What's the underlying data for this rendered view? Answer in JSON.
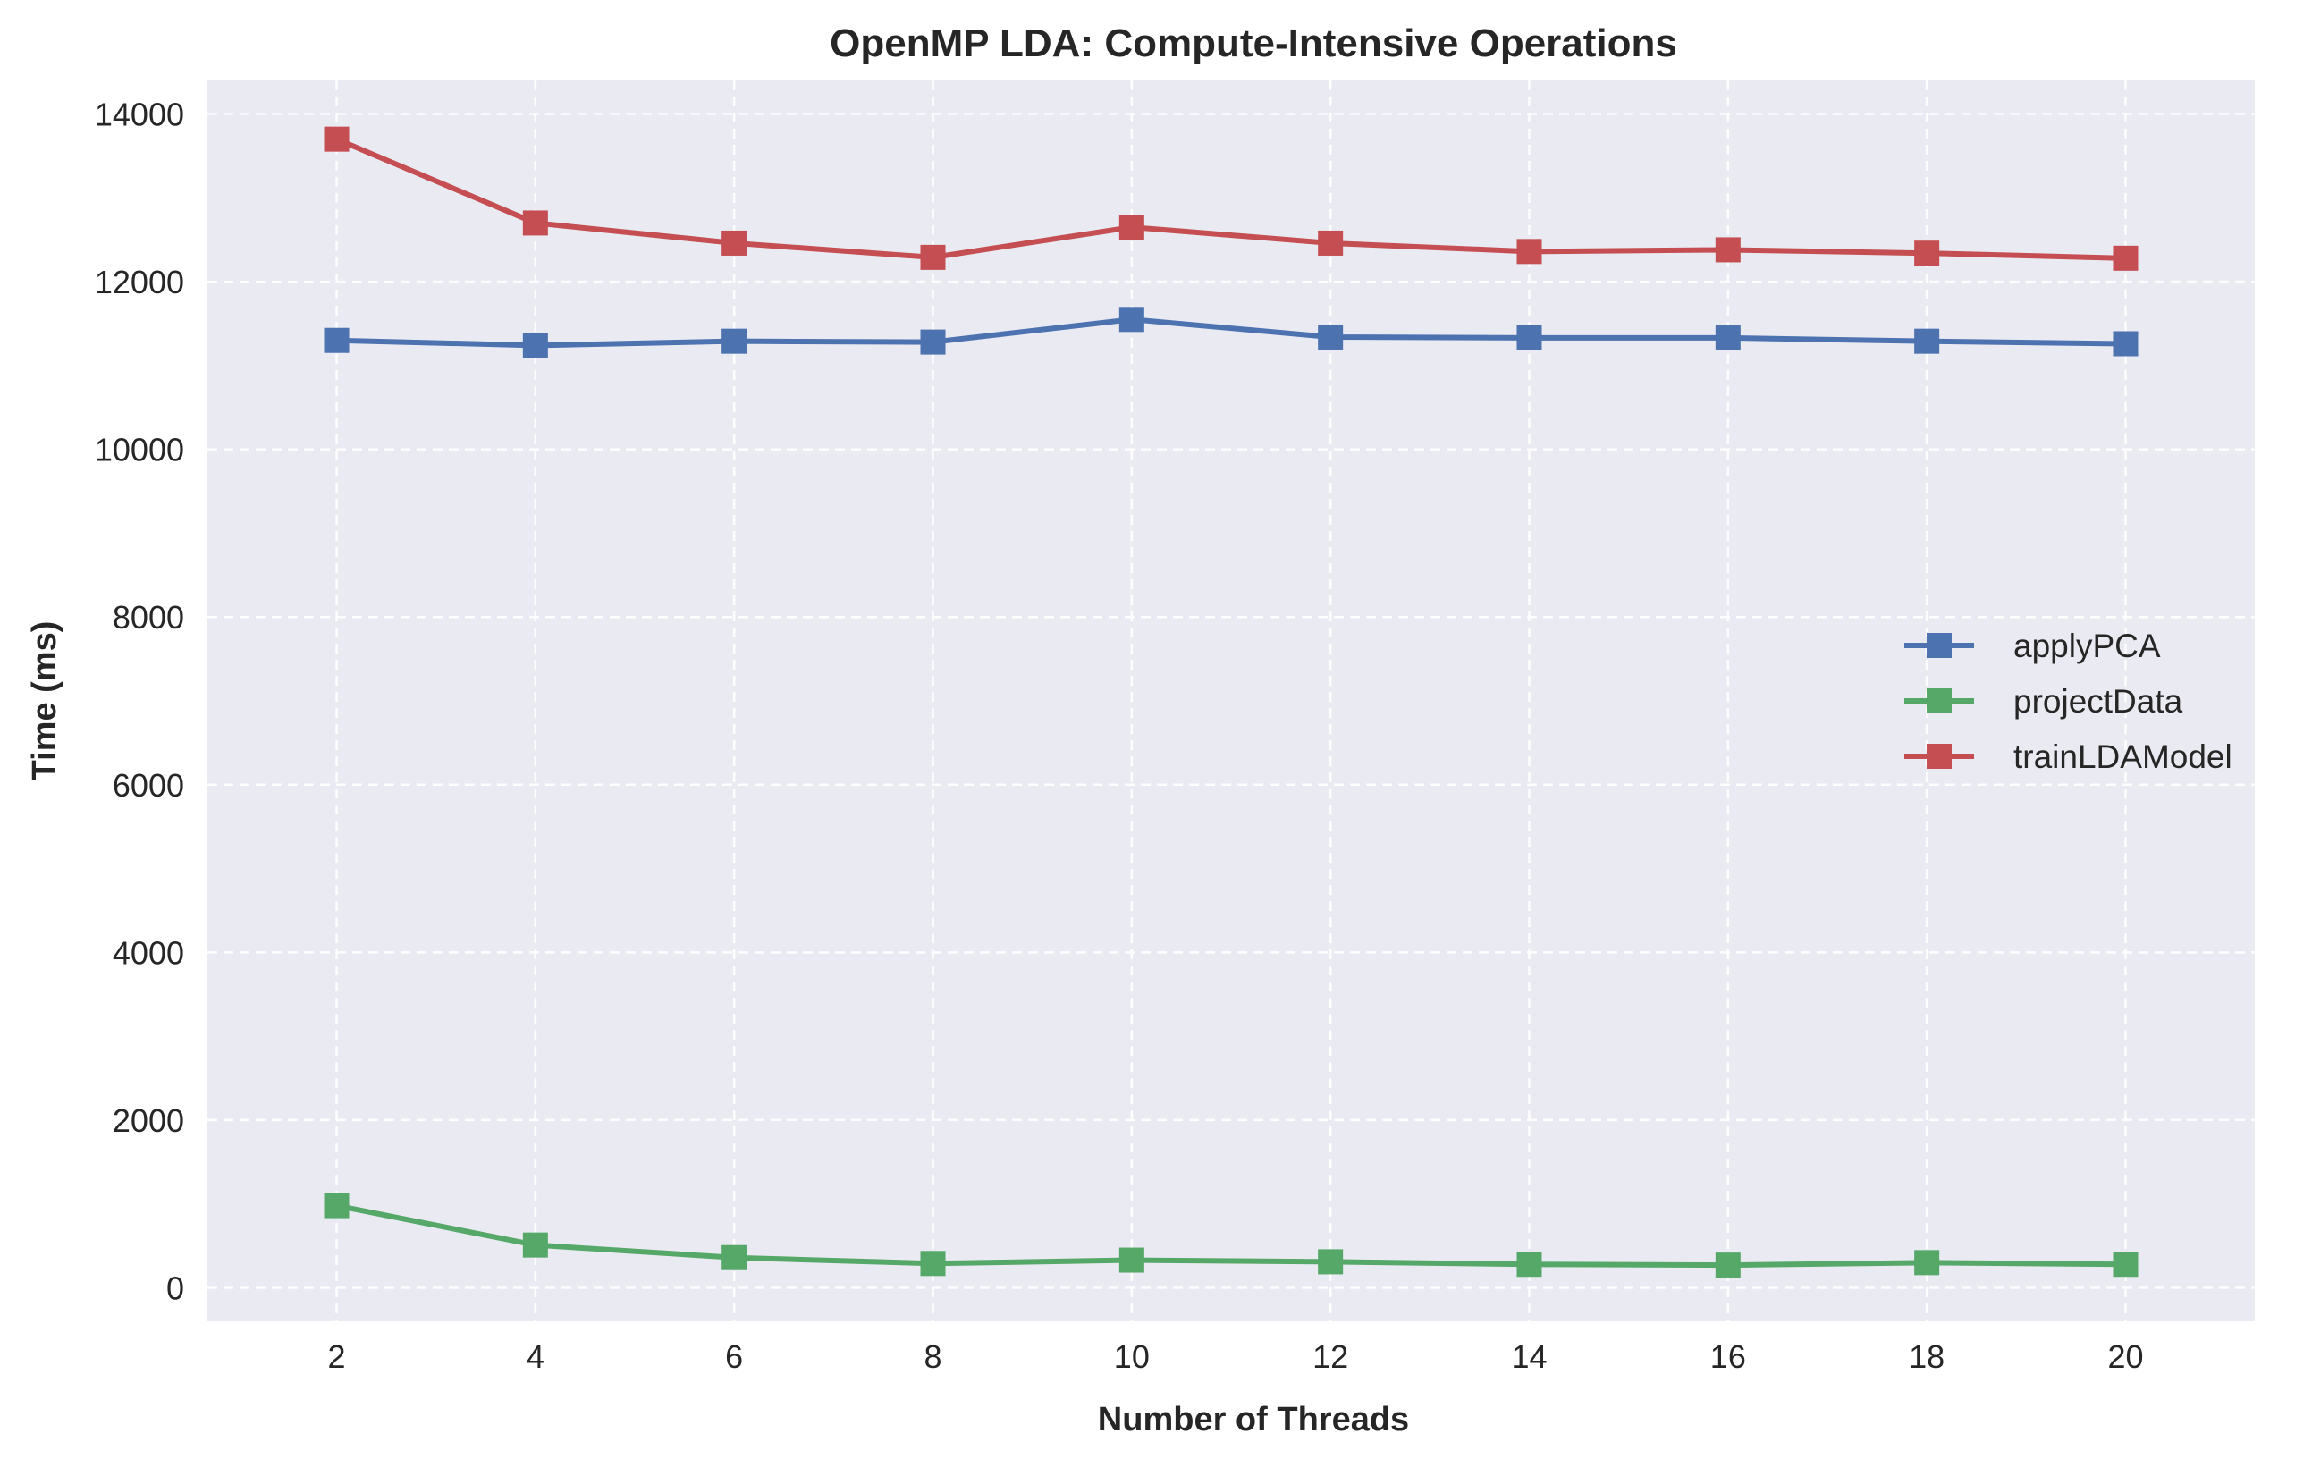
{
  "chart_data": {
    "type": "line",
    "title": "OpenMP LDA: Compute-Intensive Operations",
    "xlabel": "Number of Threads",
    "ylabel": "Time (ms)",
    "x": [
      2,
      4,
      6,
      8,
      10,
      12,
      14,
      16,
      18,
      20
    ],
    "xlim": [
      0.7,
      21.3
    ],
    "ylim": [
      -400,
      14400
    ],
    "xticks": [
      "2",
      "4",
      "6",
      "8",
      "10",
      "12",
      "14",
      "16",
      "18",
      "20"
    ],
    "yticks": [
      "0",
      "2000",
      "4000",
      "6000",
      "8000",
      "10000",
      "12000",
      "14000"
    ],
    "grid": true,
    "legend_position": "center-right",
    "marker": "square",
    "background": "#eaeaf2",
    "series": [
      {
        "name": "applyPCA",
        "color": "#4c72b0",
        "values": [
          11300,
          11240,
          11290,
          11280,
          11550,
          11340,
          11330,
          11330,
          11290,
          11260
        ]
      },
      {
        "name": "projectData",
        "color": "#55a868",
        "values": [
          980,
          510,
          360,
          290,
          330,
          310,
          280,
          270,
          300,
          280
        ]
      },
      {
        "name": "trainLDAModel",
        "color": "#c44e52",
        "values": [
          13700,
          12700,
          12460,
          12290,
          12650,
          12460,
          12360,
          12380,
          12340,
          12280
        ]
      }
    ]
  }
}
